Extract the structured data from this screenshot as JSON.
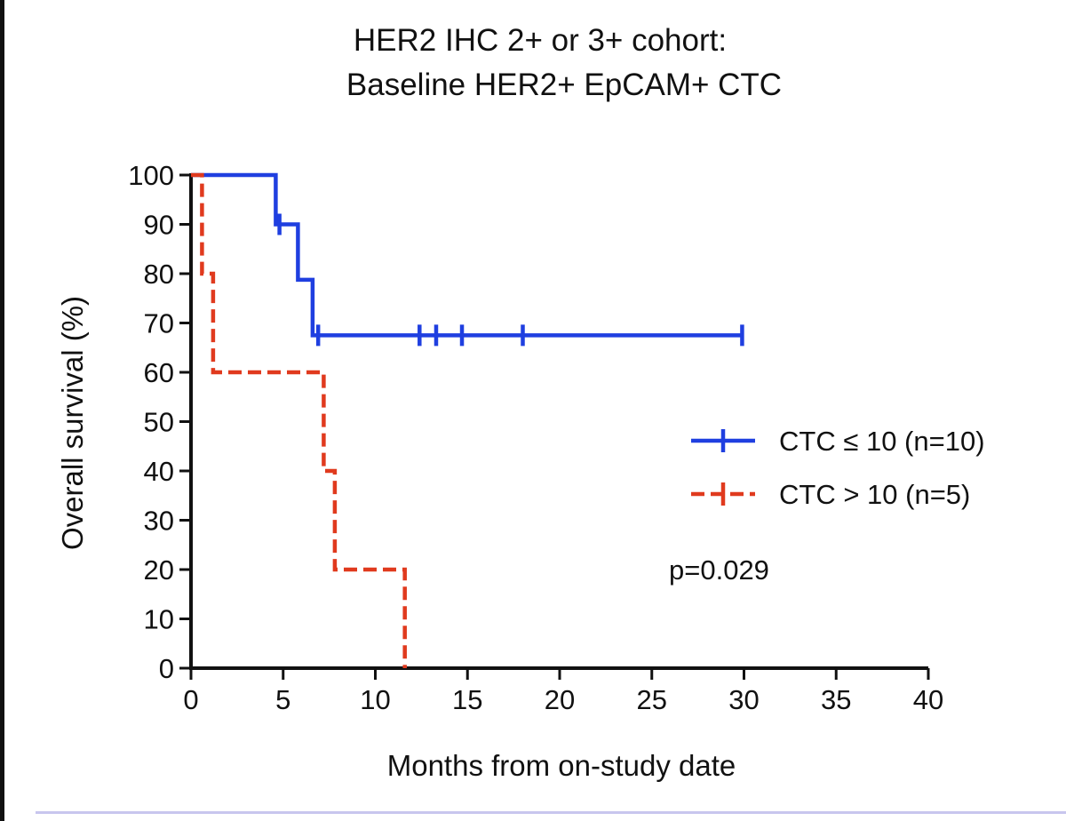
{
  "chart_data": {
    "type": "line",
    "title_lines": [
      "HER2 IHC 2+ or 3+ cohort:",
      "Baseline HER2+ EpCAM+ CTC"
    ],
    "xlabel": "Months from on-study date",
    "ylabel": "Overall survival (%)",
    "xlim": [
      0,
      40
    ],
    "ylim": [
      0,
      100
    ],
    "xticks": [
      0,
      5,
      10,
      15,
      20,
      25,
      30,
      35,
      40
    ],
    "yticks": [
      0,
      10,
      20,
      30,
      40,
      50,
      60,
      70,
      80,
      90,
      100
    ],
    "grid": false,
    "legend_position": "right",
    "annotation": "p=0.029",
    "series": [
      {
        "name": "CTC ≤ 10 (n=10)",
        "color": "#1f3fe0",
        "dash": "solid",
        "steps": [
          [
            0,
            100
          ],
          [
            4.6,
            100
          ],
          [
            4.6,
            90
          ],
          [
            5.8,
            90
          ],
          [
            5.8,
            78.75
          ],
          [
            6.6,
            78.75
          ],
          [
            6.6,
            67.5
          ],
          [
            29.9,
            67.5
          ]
        ],
        "censored": [
          [
            4.8,
            90
          ],
          [
            6.9,
            67.5
          ],
          [
            12.4,
            67.5
          ],
          [
            13.3,
            67.5
          ],
          [
            14.7,
            67.5
          ],
          [
            18.0,
            67.5
          ],
          [
            29.9,
            67.5
          ]
        ]
      },
      {
        "name": "CTC > 10 (n=5)",
        "color": "#e03a1e",
        "dash": "dashed",
        "steps": [
          [
            0,
            100
          ],
          [
            0.6,
            100
          ],
          [
            0.6,
            80
          ],
          [
            1.2,
            80
          ],
          [
            1.2,
            60
          ],
          [
            7.2,
            60
          ],
          [
            7.2,
            40
          ],
          [
            7.8,
            40
          ],
          [
            7.8,
            20
          ],
          [
            11.6,
            20
          ],
          [
            11.6,
            0
          ]
        ],
        "censored": []
      }
    ]
  }
}
